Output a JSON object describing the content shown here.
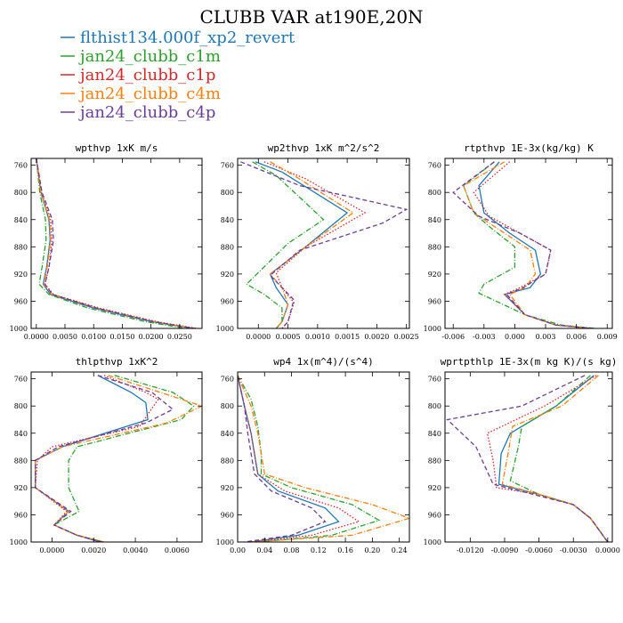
{
  "figure": {
    "title": "CLUBB VAR at190E,20N"
  },
  "legend": [
    {
      "name": "flthist134.000f_xp2_revert",
      "color": "#1f77b4",
      "dash": "solid"
    },
    {
      "name": "jan24_clubb_c1m",
      "color": "#2ca02c",
      "dash": "dashdot"
    },
    {
      "name": "jan24_clubb_c1p",
      "color": "#d62728",
      "dash": "dotted"
    },
    {
      "name": "jan24_clubb_c4m",
      "color": "#ff7f0e",
      "dash": "dashdot"
    },
    {
      "name": "jan24_clubb_c4p",
      "color": "#6a3d9a",
      "dash": "dashed"
    }
  ],
  "chart_data": [
    {
      "type": "line",
      "title": "wpthvp  1xK m/s",
      "xlim": [
        -0.0009,
        0.0289
      ],
      "ylim": [
        750,
        1000
      ],
      "xticks": [
        0,
        0.005,
        0.01,
        0.015,
        0.02,
        0.025
      ],
      "xticklabels": [
        "0.0000",
        "0.0050",
        "0.0100",
        "0.0150",
        "0.0200",
        "0.0250"
      ],
      "yticks": [
        760,
        800,
        840,
        880,
        920,
        960,
        1000
      ],
      "series": [
        {
          "name": "flthist134.000f_xp2_revert",
          "x": [
            0,
            0.0008,
            0.0022,
            0.0024,
            0.0018,
            0.0012,
            0.0025,
            0.01,
            0.02,
            0.0275
          ],
          "y": [
            750,
            800,
            840,
            870,
            910,
            935,
            950,
            970,
            990,
            1000
          ]
        },
        {
          "name": "jan24_clubb_c1m",
          "x": [
            0,
            0.0006,
            0.0016,
            0.0017,
            0.001,
            0.0005,
            0.0022,
            0.009,
            0.019,
            0.026
          ],
          "y": [
            750,
            800,
            840,
            870,
            910,
            935,
            950,
            970,
            990,
            1000
          ]
        },
        {
          "name": "jan24_clubb_c1p",
          "x": [
            0,
            0.0009,
            0.0025,
            0.0027,
            0.0022,
            0.0015,
            0.003,
            0.011,
            0.021,
            0.028
          ],
          "y": [
            750,
            800,
            840,
            870,
            910,
            935,
            950,
            970,
            990,
            1000
          ]
        },
        {
          "name": "jan24_clubb_c4m",
          "x": [
            0,
            0.0008,
            0.0023,
            0.0025,
            0.0019,
            0.0013,
            0.0027,
            0.0105,
            0.0205,
            0.0275
          ],
          "y": [
            750,
            800,
            840,
            870,
            910,
            935,
            950,
            970,
            990,
            1000
          ]
        },
        {
          "name": "jan24_clubb_c4p",
          "x": [
            0,
            0.001,
            0.0028,
            0.003,
            0.0022,
            0.0015,
            0.0028,
            0.0105,
            0.0205,
            0.0275
          ],
          "y": [
            750,
            800,
            840,
            870,
            910,
            935,
            950,
            970,
            990,
            1000
          ]
        }
      ]
    },
    {
      "type": "line",
      "title": "wp2thvp  1xK m^2/s^2",
      "xlim": [
        -0.00035,
        0.00255
      ],
      "ylim": [
        750,
        1000
      ],
      "xticks": [
        0,
        0.0005,
        0.001,
        0.0015,
        0.002,
        0.0025
      ],
      "xticklabels": [
        "0.0000",
        "0.0005",
        "0.0010",
        "0.0015",
        "0.0020",
        "0.0025"
      ],
      "yticks": [
        760,
        800,
        840,
        880,
        920,
        960,
        1000
      ],
      "series": [
        {
          "name": "flthist134.000f_xp2_revert",
          "x": [
            -5e-05,
            0.0004,
            0.0015,
            0.0008,
            0.0002,
            0.0003,
            0.0005,
            0.0004,
            0.0003
          ],
          "y": [
            755,
            770,
            830,
            880,
            920,
            940,
            965,
            990,
            1000
          ]
        },
        {
          "name": "jan24_clubb_c1m",
          "x": [
            -0.0001,
            0.0003,
            0.0011,
            0.0005,
            -0.0002,
            0.0001,
            0.0004,
            0.0004,
            0.0003
          ],
          "y": [
            755,
            775,
            840,
            875,
            935,
            950,
            970,
            990,
            1000
          ]
        },
        {
          "name": "jan24_clubb_c1p",
          "x": [
            0.0001,
            0.0008,
            0.0018,
            0.0008,
            0.0003,
            0.0004,
            0.0006,
            0.0005,
            0.0004
          ],
          "y": [
            755,
            780,
            830,
            880,
            918,
            940,
            962,
            990,
            1000
          ]
        },
        {
          "name": "jan24_clubb_c4m",
          "x": [
            0.0002,
            0.0006,
            0.0016,
            0.0008,
            0.0002,
            0.0004,
            0.0005,
            0.0004,
            0.0003
          ],
          "y": [
            755,
            775,
            830,
            880,
            920,
            940,
            965,
            990,
            1000
          ]
        },
        {
          "name": "jan24_clubb_c4p",
          "x": [
            -0.0003,
            0.0007,
            0.0025,
            0.0021,
            0.0007,
            0.0002,
            0.0006,
            0.0005,
            0.0004
          ],
          "y": [
            755,
            790,
            825,
            845,
            885,
            922,
            958,
            990,
            1000
          ]
        }
      ]
    },
    {
      "type": "line",
      "title": "rtpthvp  1E-3x(kg/kg) K",
      "xlim": [
        -0.0068,
        0.0095
      ],
      "ylim": [
        750,
        1000
      ],
      "xticks": [
        -0.006,
        -0.003,
        0,
        0.003,
        0.006,
        0.009
      ],
      "xticklabels": [
        "-0.006",
        "-0.003",
        "0.000",
        "0.003",
        "0.006",
        "0.009"
      ],
      "yticks": [
        760,
        800,
        840,
        880,
        920,
        960,
        1000
      ],
      "series": [
        {
          "name": "flthist134.000f_xp2_revert",
          "x": [
            -0.0015,
            -0.0035,
            -0.003,
            -0.0005,
            0.002,
            0.0025,
            0.0015,
            -0.001,
            0.001,
            0.004,
            0.0075
          ],
          "y": [
            755,
            790,
            830,
            860,
            885,
            920,
            940,
            950,
            980,
            995,
            1000
          ]
        },
        {
          "name": "jan24_clubb_c1m",
          "x": [
            -0.002,
            -0.005,
            -0.004,
            -0.0025,
            0.0,
            0.0,
            -0.003,
            -0.0035,
            0.001,
            0.0045,
            0.0078
          ],
          "y": [
            755,
            790,
            830,
            850,
            880,
            910,
            935,
            948,
            980,
            995,
            1000
          ]
        },
        {
          "name": "jan24_clubb_c1p",
          "x": [
            -0.0005,
            -0.004,
            -0.0025,
            0.0005,
            0.0035,
            0.003,
            0.0005,
            -0.001,
            0.001,
            0.004,
            0.0075
          ],
          "y": [
            755,
            800,
            835,
            860,
            885,
            920,
            940,
            950,
            980,
            995,
            1000
          ]
        },
        {
          "name": "jan24_clubb_c4m",
          "x": [
            -0.001,
            -0.005,
            -0.004,
            -0.001,
            0.0015,
            0.002,
            0.001,
            -0.0005,
            0.001,
            0.004,
            0.0075
          ],
          "y": [
            755,
            790,
            830,
            860,
            885,
            920,
            940,
            950,
            980,
            995,
            1000
          ]
        },
        {
          "name": "jan24_clubb_c4p",
          "x": [
            -0.002,
            -0.006,
            -0.0035,
            0.0005,
            0.0035,
            0.003,
            0.0008,
            -0.0008,
            0.001,
            0.004,
            0.0075
          ],
          "y": [
            755,
            800,
            835,
            860,
            885,
            920,
            940,
            950,
            980,
            995,
            1000
          ]
        }
      ]
    },
    {
      "type": "line",
      "title": "thlpthvp  1xK^2",
      "xlim": [
        -0.001,
        0.0072
      ],
      "ylim": [
        750,
        1000
      ],
      "xticks": [
        0,
        0.002,
        0.004,
        0.006
      ],
      "xticklabels": [
        "0.0000",
        "0.0020",
        "0.0040",
        "0.0060"
      ],
      "yticks": [
        760,
        800,
        840,
        880,
        920,
        960,
        1000
      ],
      "series": [
        {
          "name": "flthist134.000f_xp2_revert",
          "x": [
            0.0022,
            0.0038,
            0.0045,
            0.0046,
            0.0005,
            -0.0008,
            -0.0008,
            0.0008,
            0.0001,
            0.0012,
            0.0023
          ],
          "y": [
            755,
            780,
            795,
            820,
            860,
            880,
            920,
            955,
            975,
            990,
            1000
          ]
        },
        {
          "name": "jan24_clubb_c1m",
          "x": [
            0.003,
            0.0058,
            0.0068,
            0.0062,
            0.0012,
            0.0008,
            0.0008,
            0.0013,
            0.0001,
            0.0012,
            0.0025
          ],
          "y": [
            755,
            780,
            800,
            820,
            860,
            880,
            920,
            955,
            975,
            990,
            1000
          ]
        },
        {
          "name": "jan24_clubb_c1p",
          "x": [
            0.0025,
            0.0045,
            0.0051,
            0.0042,
            0.0,
            -0.0007,
            -0.0008,
            0.0007,
            0.0001,
            0.0012,
            0.0024
          ],
          "y": [
            755,
            780,
            790,
            830,
            860,
            880,
            920,
            955,
            975,
            990,
            1000
          ]
        },
        {
          "name": "jan24_clubb_c4m",
          "x": [
            0.0027,
            0.0052,
            0.0072,
            0.0055,
            0.0005,
            -0.0008,
            -0.0008,
            0.0008,
            0.0001,
            0.0012,
            0.0025
          ],
          "y": [
            755,
            780,
            800,
            825,
            860,
            880,
            920,
            955,
            975,
            990,
            1000
          ]
        },
        {
          "name": "jan24_clubb_c4p",
          "x": [
            0.0022,
            0.0048,
            0.0058,
            0.0045,
            0.0003,
            -0.0008,
            -0.0008,
            0.0009,
            0.0001,
            0.0012,
            0.0024
          ],
          "y": [
            755,
            780,
            805,
            825,
            860,
            880,
            920,
            955,
            975,
            990,
            1000
          ]
        }
      ]
    },
    {
      "type": "line",
      "title": "wp4  1x(m^4)/(s^4)",
      "xlim": [
        0,
        0.255
      ],
      "ylim": [
        750,
        1000
      ],
      "xticks": [
        0,
        0.04,
        0.08,
        0.12,
        0.16,
        0.2,
        0.24
      ],
      "xticklabels": [
        "0.00",
        "0.04",
        "0.08",
        "0.12",
        "0.16",
        "0.20",
        "0.24"
      ],
      "yticks": [
        760,
        800,
        840,
        880,
        920,
        960,
        1000
      ],
      "series": [
        {
          "name": "flthist134.000f_xp2_revert",
          "x": [
            0,
            0.01,
            0.02,
            0.025,
            0.03,
            0.06,
            0.13,
            0.15,
            0.09,
            0.02
          ],
          "y": [
            755,
            800,
            840,
            870,
            900,
            925,
            950,
            970,
            990,
            1000
          ]
        },
        {
          "name": "jan24_clubb_c1m",
          "x": [
            0,
            0.02,
            0.03,
            0.035,
            0.035,
            0.08,
            0.17,
            0.21,
            0.14,
            0.03
          ],
          "y": [
            755,
            790,
            830,
            870,
            900,
            920,
            945,
            968,
            990,
            1000
          ]
        },
        {
          "name": "jan24_clubb_c1p",
          "x": [
            0,
            0.01,
            0.02,
            0.025,
            0.03,
            0.07,
            0.15,
            0.18,
            0.11,
            0.02
          ],
          "y": [
            755,
            800,
            840,
            870,
            900,
            925,
            950,
            970,
            990,
            1000
          ]
        },
        {
          "name": "jan24_clubb_c4m",
          "x": [
            0,
            0.02,
            0.03,
            0.035,
            0.04,
            0.1,
            0.2,
            0.255,
            0.17,
            0.02
          ],
          "y": [
            755,
            800,
            840,
            870,
            900,
            920,
            945,
            965,
            990,
            1000
          ]
        },
        {
          "name": "jan24_clubb_c4p",
          "x": [
            0,
            0.01,
            0.015,
            0.02,
            0.025,
            0.05,
            0.11,
            0.13,
            0.08,
            0.01
          ],
          "y": [
            755,
            800,
            840,
            870,
            900,
            925,
            950,
            970,
            990,
            1000
          ]
        }
      ]
    },
    {
      "type": "line",
      "title": "wprtpthlp  1E-3x(m kg K)/(s kg)",
      "xlim": [
        -0.0142,
        0.0004
      ],
      "ylim": [
        750,
        1000
      ],
      "xticks": [
        -0.012,
        -0.009,
        -0.006,
        -0.003,
        0
      ],
      "xticklabels": [
        "-0.0120",
        "-0.0090",
        "-0.0060",
        "-0.0030",
        "0.0000"
      ],
      "yticks": [
        760,
        800,
        840,
        880,
        920,
        960,
        1000
      ],
      "series": [
        {
          "name": "flthist134.000f_xp2_revert",
          "x": [
            -0.0012,
            -0.0045,
            -0.0085,
            -0.0093,
            -0.0095,
            -0.006,
            -0.003,
            -0.0015,
            0
          ],
          "y": [
            755,
            800,
            840,
            870,
            915,
            930,
            945,
            965,
            1000
          ]
        },
        {
          "name": "jan24_clubb_c1m",
          "x": [
            -0.0015,
            -0.0045,
            -0.0075,
            -0.0078,
            -0.0085,
            -0.006,
            -0.003,
            -0.0015,
            0
          ],
          "y": [
            755,
            800,
            830,
            860,
            910,
            930,
            945,
            965,
            1000
          ]
        },
        {
          "name": "jan24_clubb_c1p",
          "x": [
            -0.001,
            -0.0055,
            -0.0105,
            -0.01,
            -0.0097,
            -0.006,
            -0.003,
            -0.0015,
            0
          ],
          "y": [
            755,
            800,
            840,
            880,
            920,
            930,
            945,
            965,
            1000
          ]
        },
        {
          "name": "jan24_clubb_c4m",
          "x": [
            -0.0008,
            -0.004,
            -0.0083,
            -0.0087,
            -0.0092,
            -0.006,
            -0.003,
            -0.0015,
            0
          ],
          "y": [
            755,
            800,
            830,
            870,
            915,
            930,
            945,
            965,
            1000
          ]
        },
        {
          "name": "jan24_clubb_c4p",
          "x": [
            -0.002,
            -0.0075,
            -0.014,
            -0.0115,
            -0.01,
            -0.0065,
            -0.003,
            -0.0015,
            0
          ],
          "y": [
            755,
            800,
            820,
            860,
            915,
            930,
            945,
            965,
            1000
          ]
        }
      ]
    }
  ]
}
